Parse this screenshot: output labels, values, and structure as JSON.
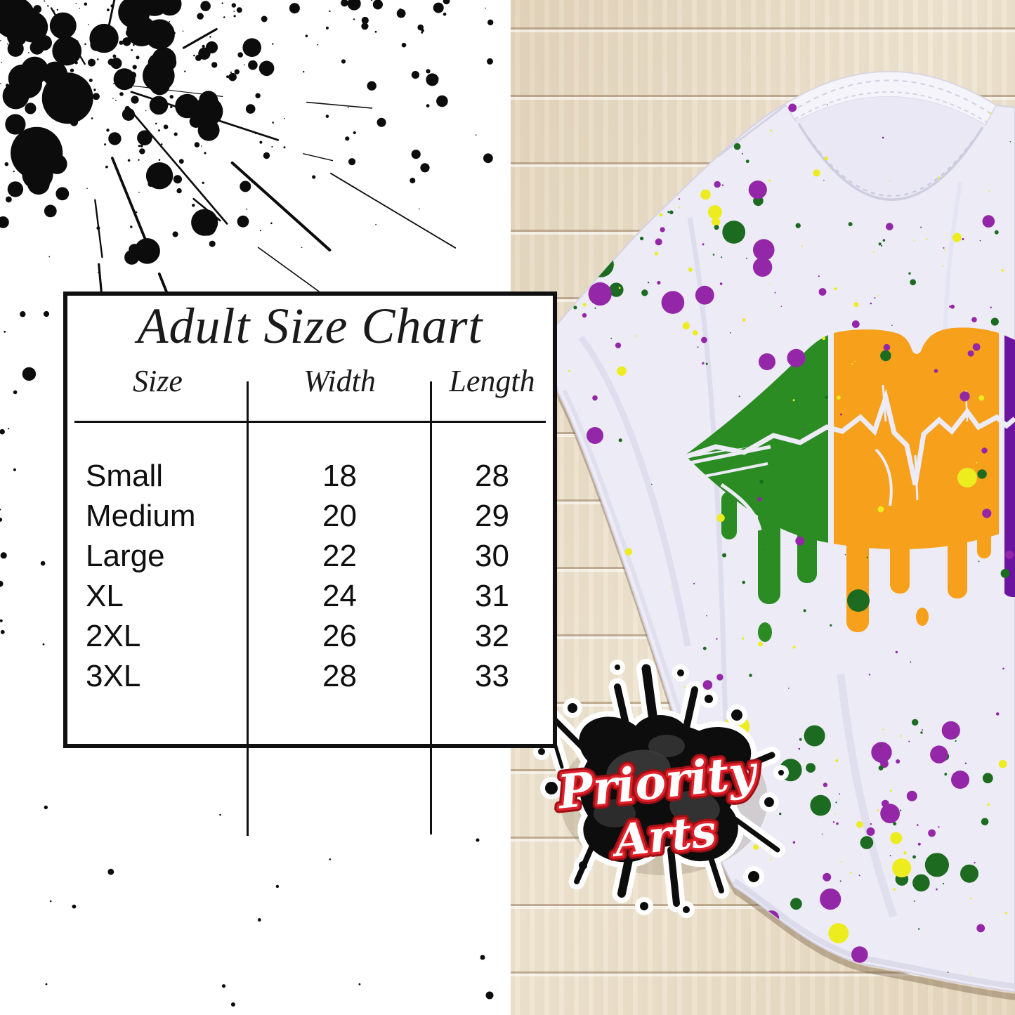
{
  "size_chart": {
    "title": "Adult Size Chart",
    "columns": {
      "size": "Size",
      "width": "Width",
      "length": "Length"
    },
    "rows": [
      {
        "size": "Small",
        "width": "18",
        "length": "28"
      },
      {
        "size": "Medium",
        "width": "20",
        "length": "29"
      },
      {
        "size": "Large",
        "width": "22",
        "length": "30"
      },
      {
        "size": "XL",
        "width": "24",
        "length": "31"
      },
      {
        "size": "2XL",
        "width": "26",
        "length": "32"
      },
      {
        "size": "3XL",
        "width": "28",
        "length": "33"
      }
    ]
  },
  "logo": {
    "line1": "Priority",
    "line2": "Arts"
  },
  "colors": {
    "lips_green": "#2a8c22",
    "lips_orange": "#f6a01c",
    "lips_purple": "#6b14a0",
    "splat_purple": "#9327a8",
    "splat_yellow": "#ecec1e",
    "splat_green": "#1c6b21",
    "logo_red": "#e0202a",
    "logo_red_dark": "#9e0f14",
    "splatter_black": "#0c0c0c",
    "shirt": "#ecebf6"
  },
  "chart_data": {
    "type": "table",
    "title": "Adult Size Chart",
    "columns": [
      "Size",
      "Width",
      "Length"
    ],
    "rows": [
      [
        "Small",
        18,
        28
      ],
      [
        "Medium",
        20,
        29
      ],
      [
        "Large",
        22,
        30
      ],
      [
        "XL",
        24,
        31
      ],
      [
        "2XL",
        26,
        32
      ],
      [
        "3XL",
        28,
        33
      ]
    ]
  }
}
